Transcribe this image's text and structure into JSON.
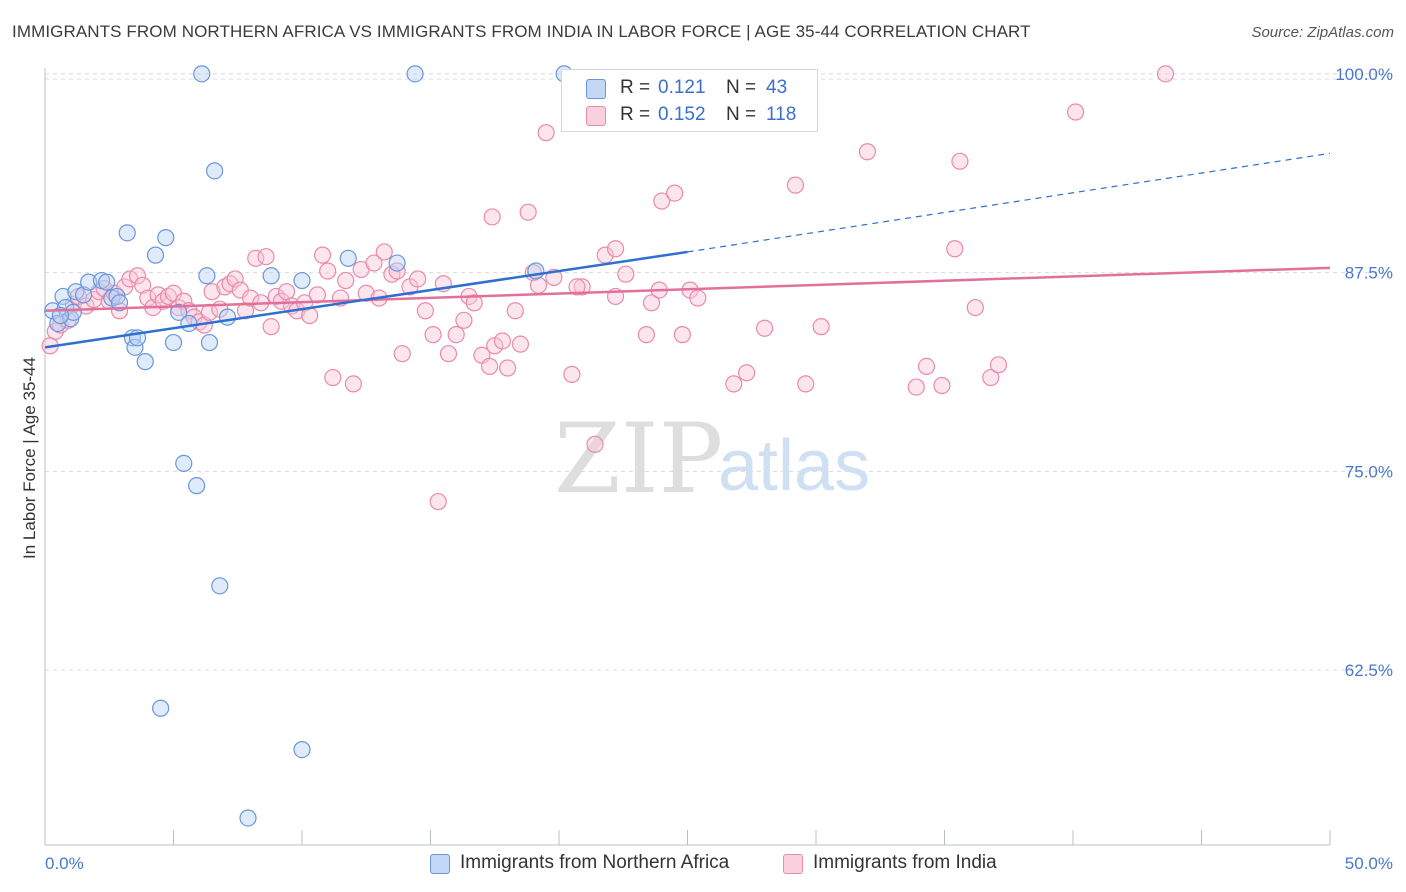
{
  "header": {
    "title": "IMMIGRANTS FROM NORTHERN AFRICA VS IMMIGRANTS FROM INDIA IN LABOR FORCE | AGE 35-44 CORRELATION CHART",
    "source": "Source: ZipAtlas.com"
  },
  "watermark": {
    "zip": "ZIP",
    "atlas": "atlas"
  },
  "legend": {
    "r_label": "R =",
    "n_label": "N =",
    "series": [
      {
        "r": "0.121",
        "n": "43"
      },
      {
        "r": "0.152",
        "n": "118"
      }
    ]
  },
  "bottom_legend": [
    "Immigrants from Northern Africa",
    "Immigrants from India"
  ],
  "colors": {
    "blue_fill": "#b9d1f3",
    "blue_stroke": "#6b96dc",
    "blue_line": "#2f6fd0",
    "pink_fill": "#f8c6d6",
    "pink_stroke": "#e98aaa",
    "pink_line": "#e2709a",
    "tick_text": "#4a77c8",
    "grid": "#d5d9e0"
  },
  "chart_data": {
    "type": "scatter",
    "title": "IMMIGRANTS FROM NORTHERN AFRICA VS IMMIGRANTS FROM INDIA IN LABOR FORCE | AGE 35-44 CORRELATION CHART",
    "xlabel": "",
    "ylabel": "In Labor Force | Age 35-44",
    "xlim": [
      0,
      50
    ],
    "ylim": [
      51.5,
      101.5
    ],
    "x_tick_labels": [
      "0.0%",
      "50.0%"
    ],
    "y_ticks": [
      62.5,
      75.0,
      87.5,
      100.0
    ],
    "y_tick_labels": [
      "62.5%",
      "75.0%",
      "87.5%",
      "100.0%"
    ],
    "grid": "horizontal dashed",
    "series": [
      {
        "name": "Immigrants from Northern Africa",
        "r": 0.121,
        "n": 43,
        "trend": {
          "x0": 0,
          "y0": 82.8,
          "x1": 25,
          "y1": 88.8,
          "dashed_to_x": 50,
          "dashed_to_y": 95.0
        },
        "points": [
          [
            0.3,
            85.1
          ],
          [
            0.5,
            84.3
          ],
          [
            0.7,
            86.0
          ],
          [
            0.8,
            85.3
          ],
          [
            1.0,
            84.6
          ],
          [
            1.1,
            85.0
          ],
          [
            1.2,
            86.3
          ],
          [
            1.5,
            86.1
          ],
          [
            1.7,
            86.9
          ],
          [
            2.2,
            87.0
          ],
          [
            2.4,
            86.9
          ],
          [
            2.6,
            85.9
          ],
          [
            2.8,
            86.0
          ],
          [
            2.9,
            85.6
          ],
          [
            3.2,
            90.0
          ],
          [
            3.4,
            83.4
          ],
          [
            3.5,
            82.8
          ],
          [
            3.6,
            83.4
          ],
          [
            3.9,
            81.9
          ],
          [
            4.3,
            88.6
          ],
          [
            4.5,
            60.1
          ],
          [
            4.7,
            89.7
          ],
          [
            5.0,
            83.1
          ],
          [
            5.2,
            85.0
          ],
          [
            5.4,
            75.5
          ],
          [
            5.6,
            84.3
          ],
          [
            5.9,
            74.1
          ],
          [
            6.1,
            100.0
          ],
          [
            6.3,
            87.3
          ],
          [
            6.4,
            83.1
          ],
          [
            6.6,
            93.9
          ],
          [
            6.8,
            67.8
          ],
          [
            7.1,
            84.7
          ],
          [
            7.9,
            53.2
          ],
          [
            8.8,
            87.3
          ],
          [
            10.0,
            57.5
          ],
          [
            10.0,
            87.0
          ],
          [
            11.8,
            88.4
          ],
          [
            13.7,
            88.1
          ],
          [
            14.4,
            100.0
          ],
          [
            19.1,
            87.6
          ],
          [
            20.2,
            100.0
          ],
          [
            0.6,
            84.8
          ]
        ]
      },
      {
        "name": "Immigrants from India",
        "r": 0.152,
        "n": 118,
        "trend": {
          "x0": 0,
          "y0": 85.1,
          "x1": 50,
          "y1": 87.8
        },
        "points": [
          [
            0.2,
            82.9
          ],
          [
            0.4,
            83.8
          ],
          [
            0.6,
            84.2
          ],
          [
            0.9,
            84.5
          ],
          [
            1.1,
            85.5
          ],
          [
            1.3,
            86.0
          ],
          [
            1.6,
            85.4
          ],
          [
            1.9,
            85.8
          ],
          [
            2.1,
            86.3
          ],
          [
            2.3,
            86.5
          ],
          [
            2.5,
            85.7
          ],
          [
            2.7,
            86.2
          ],
          [
            2.9,
            85.1
          ],
          [
            3.1,
            86.6
          ],
          [
            3.3,
            87.1
          ],
          [
            3.6,
            87.3
          ],
          [
            3.8,
            86.7
          ],
          [
            4.0,
            85.9
          ],
          [
            4.2,
            85.3
          ],
          [
            4.4,
            86.1
          ],
          [
            4.6,
            85.7
          ],
          [
            4.8,
            86.0
          ],
          [
            5.0,
            86.2
          ],
          [
            5.2,
            85.3
          ],
          [
            5.4,
            85.7
          ],
          [
            5.6,
            85.1
          ],
          [
            5.8,
            84.7
          ],
          [
            6.0,
            84.4
          ],
          [
            6.2,
            84.2
          ],
          [
            6.4,
            85.0
          ],
          [
            6.5,
            86.3
          ],
          [
            6.8,
            85.2
          ],
          [
            7.0,
            86.6
          ],
          [
            7.2,
            86.8
          ],
          [
            7.4,
            87.1
          ],
          [
            7.6,
            86.4
          ],
          [
            7.8,
            85.1
          ],
          [
            8.0,
            85.9
          ],
          [
            8.2,
            88.4
          ],
          [
            8.4,
            85.6
          ],
          [
            8.6,
            88.5
          ],
          [
            8.8,
            84.1
          ],
          [
            9.0,
            86.0
          ],
          [
            9.2,
            85.7
          ],
          [
            9.4,
            86.3
          ],
          [
            9.6,
            85.4
          ],
          [
            9.8,
            85.1
          ],
          [
            10.1,
            85.6
          ],
          [
            10.3,
            84.8
          ],
          [
            10.6,
            86.1
          ],
          [
            10.8,
            88.6
          ],
          [
            11.0,
            87.6
          ],
          [
            11.2,
            80.9
          ],
          [
            11.5,
            85.9
          ],
          [
            11.7,
            87.0
          ],
          [
            12.0,
            80.5
          ],
          [
            12.3,
            87.7
          ],
          [
            12.5,
            86.2
          ],
          [
            12.8,
            88.1
          ],
          [
            13.0,
            85.9
          ],
          [
            13.2,
            88.8
          ],
          [
            13.5,
            87.4
          ],
          [
            13.7,
            87.6
          ],
          [
            13.9,
            82.4
          ],
          [
            14.2,
            86.6
          ],
          [
            14.5,
            87.1
          ],
          [
            14.8,
            85.1
          ],
          [
            15.1,
            83.6
          ],
          [
            15.3,
            73.1
          ],
          [
            15.5,
            86.8
          ],
          [
            15.7,
            82.4
          ],
          [
            16.0,
            83.6
          ],
          [
            16.3,
            84.5
          ],
          [
            16.5,
            86.0
          ],
          [
            16.7,
            85.6
          ],
          [
            17.0,
            82.3
          ],
          [
            17.3,
            81.6
          ],
          [
            17.5,
            82.9
          ],
          [
            17.8,
            83.2
          ],
          [
            18.0,
            81.5
          ],
          [
            18.3,
            85.1
          ],
          [
            18.5,
            83.0
          ],
          [
            19.0,
            87.5
          ],
          [
            19.2,
            86.7
          ],
          [
            19.5,
            96.3
          ],
          [
            19.8,
            87.2
          ],
          [
            20.5,
            81.1
          ],
          [
            20.9,
            86.6
          ],
          [
            21.4,
            76.7
          ],
          [
            21.8,
            88.6
          ],
          [
            22.2,
            89.0
          ],
          [
            22.2,
            86.0
          ],
          [
            22.6,
            87.4
          ],
          [
            23.4,
            83.6
          ],
          [
            23.6,
            85.6
          ],
          [
            23.9,
            86.4
          ],
          [
            24.0,
            92.0
          ],
          [
            24.5,
            92.5
          ],
          [
            24.8,
            83.6
          ],
          [
            25.1,
            86.4
          ],
          [
            25.4,
            85.9
          ],
          [
            26.8,
            80.5
          ],
          [
            27.3,
            81.2
          ],
          [
            28.0,
            84.0
          ],
          [
            29.2,
            93.0
          ],
          [
            29.6,
            80.5
          ],
          [
            30.2,
            84.1
          ],
          [
            32.0,
            95.1
          ],
          [
            33.9,
            80.3
          ],
          [
            34.3,
            81.6
          ],
          [
            34.9,
            80.4
          ],
          [
            35.4,
            89.0
          ],
          [
            35.6,
            94.5
          ],
          [
            36.2,
            85.3
          ],
          [
            36.8,
            80.9
          ],
          [
            37.1,
            81.7
          ],
          [
            40.1,
            97.6
          ],
          [
            43.6,
            100.0
          ],
          [
            17.4,
            91.0
          ],
          [
            18.8,
            91.3
          ],
          [
            20.7,
            86.6
          ]
        ]
      }
    ]
  }
}
